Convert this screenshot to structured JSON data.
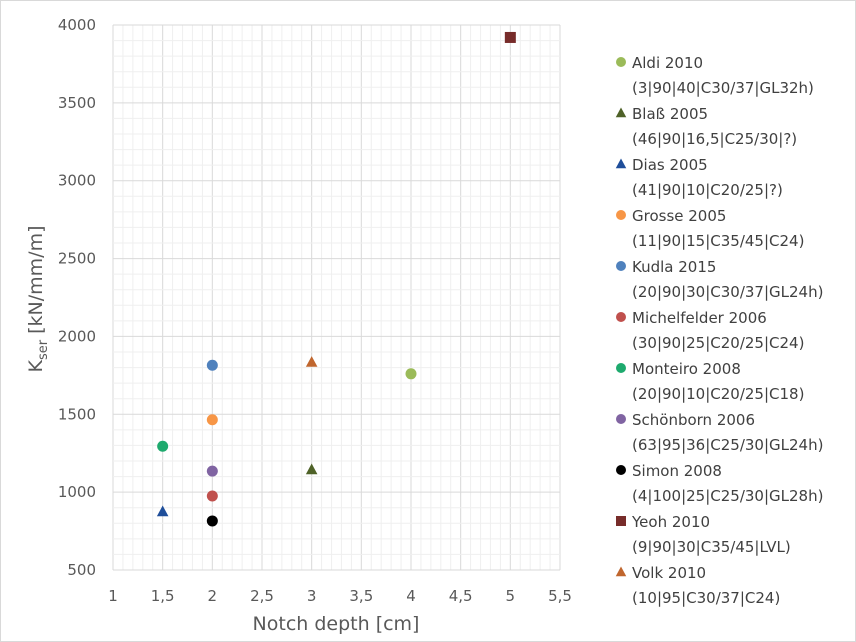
{
  "chart_data": {
    "type": "scatter",
    "title": "",
    "xlabel": "Notch depth [cm]",
    "ylabel_main": "K",
    "ylabel_sub": "ser",
    "ylabel_rest": " [kN/mm/m]",
    "xlim": [
      1,
      5.5
    ],
    "ylim": [
      500,
      4000
    ],
    "x_ticks": [
      1,
      1.5,
      2,
      2.5,
      3,
      3.5,
      4,
      4.5,
      5,
      5.5
    ],
    "x_tick_labels": [
      "1",
      "1,5",
      "2",
      "2,5",
      "3",
      "3,5",
      "4",
      "4,5",
      "5",
      "5,5"
    ],
    "y_ticks": [
      500,
      1000,
      1500,
      2000,
      2500,
      3000,
      3500,
      4000
    ],
    "y_tick_labels": [
      "500",
      "1000",
      "1500",
      "2000",
      "2500",
      "3000",
      "3500",
      "4000"
    ],
    "grid": true,
    "legend_position": "right",
    "series": [
      {
        "name": "Aldi 2010",
        "detail": "(3|90|40|C30/37|GL32h)",
        "marker": "circle",
        "color": "#9bbb59",
        "points": [
          [
            4,
            1760
          ]
        ]
      },
      {
        "name": "Blaß 2005",
        "detail": "(46|90|16,5|C25/30|?)",
        "marker": "triangle",
        "color": "#4f6228",
        "points": [
          [
            3,
            1145
          ]
        ]
      },
      {
        "name": "Dias 2005",
        "detail": "(41|90|10|C20/25|?)",
        "marker": "triangle",
        "color": "#1f4e9a",
        "points": [
          [
            1.5,
            875
          ]
        ]
      },
      {
        "name": "Grosse 2005",
        "detail": "(11|90|15|C35/45|C24)",
        "marker": "circle",
        "color": "#f79646",
        "points": [
          [
            2,
            1465
          ]
        ]
      },
      {
        "name": "Kudla 2015",
        "detail": "(20|90|30|C30/37|GL24h)",
        "marker": "circle",
        "color": "#4f81bd",
        "points": [
          [
            2,
            1815
          ]
        ]
      },
      {
        "name": "Michelfelder 2006",
        "detail": "(30|90|25|C20/25|C24)",
        "marker": "circle",
        "color": "#c0504d",
        "points": [
          [
            2,
            975
          ]
        ]
      },
      {
        "name": "Monteiro 2008",
        "detail": "(20|90|10|C20/25|C18)",
        "marker": "circle",
        "color": "#1eaa6e",
        "points": [
          [
            1.5,
            1295
          ]
        ]
      },
      {
        "name": "Schönborn 2006",
        "detail": "(63|95|36|C25/30|GL24h)",
        "marker": "circle",
        "color": "#8064a2",
        "points": [
          [
            2,
            1135
          ]
        ]
      },
      {
        "name": "Simon 2008",
        "detail": "(4|100|25|C25/30|GL28h)",
        "marker": "circle",
        "color": "#000000",
        "points": [
          [
            2,
            815
          ]
        ]
      },
      {
        "name": "Yeoh 2010",
        "detail": "(9|90|30|C35/45|LVL)",
        "marker": "square",
        "color": "#772c2a",
        "points": [
          [
            5,
            3920
          ]
        ]
      },
      {
        "name": "Volk 2010",
        "detail": "(10|95|C30/37|C24)",
        "marker": "triangle",
        "color": "#c0662e",
        "points": [
          [
            3,
            1835
          ]
        ]
      }
    ]
  }
}
